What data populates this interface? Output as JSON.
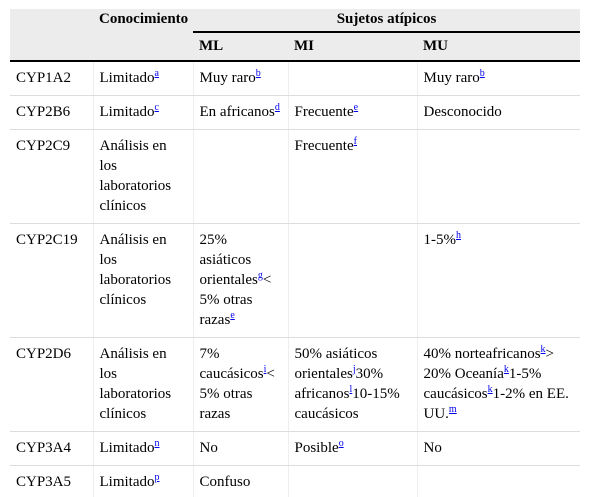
{
  "table": {
    "header": {
      "knowledge": "Conocimiento",
      "group": "Sujetos atípicos",
      "columns": [
        "ML",
        "MI",
        "MU"
      ]
    },
    "rows": [
      [
        [
          {
            "text": "CYP1A2"
          }
        ],
        [
          {
            "text": "Limitado"
          },
          {
            "ref": "a"
          }
        ],
        [
          {
            "text": "Muy raro"
          },
          {
            "ref": "b"
          }
        ],
        [],
        [
          {
            "text": "Muy raro"
          },
          {
            "ref": "b"
          }
        ]
      ],
      [
        [
          {
            "text": "CYP2B6"
          }
        ],
        [
          {
            "text": "Limitado"
          },
          {
            "ref": "c"
          }
        ],
        [
          {
            "text": "En africanos"
          },
          {
            "ref": "d"
          }
        ],
        [
          {
            "text": "Frecuente"
          },
          {
            "ref": "e"
          }
        ],
        [
          {
            "text": "Desconocido"
          }
        ]
      ],
      [
        [
          {
            "text": "CYP2C9"
          }
        ],
        [
          {
            "text": "Análisis en los laboratorios clínicos"
          }
        ],
        [],
        [
          {
            "text": "Frecuente"
          },
          {
            "ref": "f"
          }
        ],
        []
      ],
      [
        [
          {
            "text": "CYP2C19"
          }
        ],
        [
          {
            "text": "Análisis en los laboratorios clínicos"
          }
        ],
        [
          {
            "text": "25% asiáticos orientales"
          },
          {
            "ref": "g"
          },
          {
            "text": "< 5% otras razas"
          },
          {
            "ref": "e"
          }
        ],
        [],
        [
          {
            "text": "1-5%"
          },
          {
            "ref": "h"
          }
        ]
      ],
      [
        [
          {
            "text": "CYP2D6"
          }
        ],
        [
          {
            "text": "Análisis en los laboratorios clínicos"
          }
        ],
        [
          {
            "text": "7% caucásicos"
          },
          {
            "ref": "i"
          },
          {
            "text": "< 5% otras razas"
          }
        ],
        [
          {
            "text": "50% asiáticos orientales"
          },
          {
            "ref": "j"
          },
          {
            "text": "30% africanos"
          },
          {
            "ref": "l"
          },
          {
            "text": "10-15% caucásicos"
          }
        ],
        [
          {
            "text": "40% norteafricanos"
          },
          {
            "ref": "k"
          },
          {
            "text": "> 20% Oceanía"
          },
          {
            "ref": "k"
          },
          {
            "text": "1-5% caucásicos"
          },
          {
            "ref": "k"
          },
          {
            "text": "1-2% en EE. UU."
          },
          {
            "ref": "m"
          }
        ]
      ],
      [
        [
          {
            "text": "CYP3A4"
          }
        ],
        [
          {
            "text": "Limitado"
          },
          {
            "ref": "n"
          }
        ],
        [
          {
            "text": "No"
          }
        ],
        [
          {
            "text": "Posible"
          },
          {
            "ref": "o"
          }
        ],
        [
          {
            "text": "No"
          }
        ]
      ],
      [
        [
          {
            "text": "CYP3A5"
          }
        ],
        [
          {
            "text": "Limitado"
          },
          {
            "ref": "p"
          }
        ],
        [
          {
            "text": "Confuso"
          }
        ],
        [],
        []
      ]
    ]
  }
}
